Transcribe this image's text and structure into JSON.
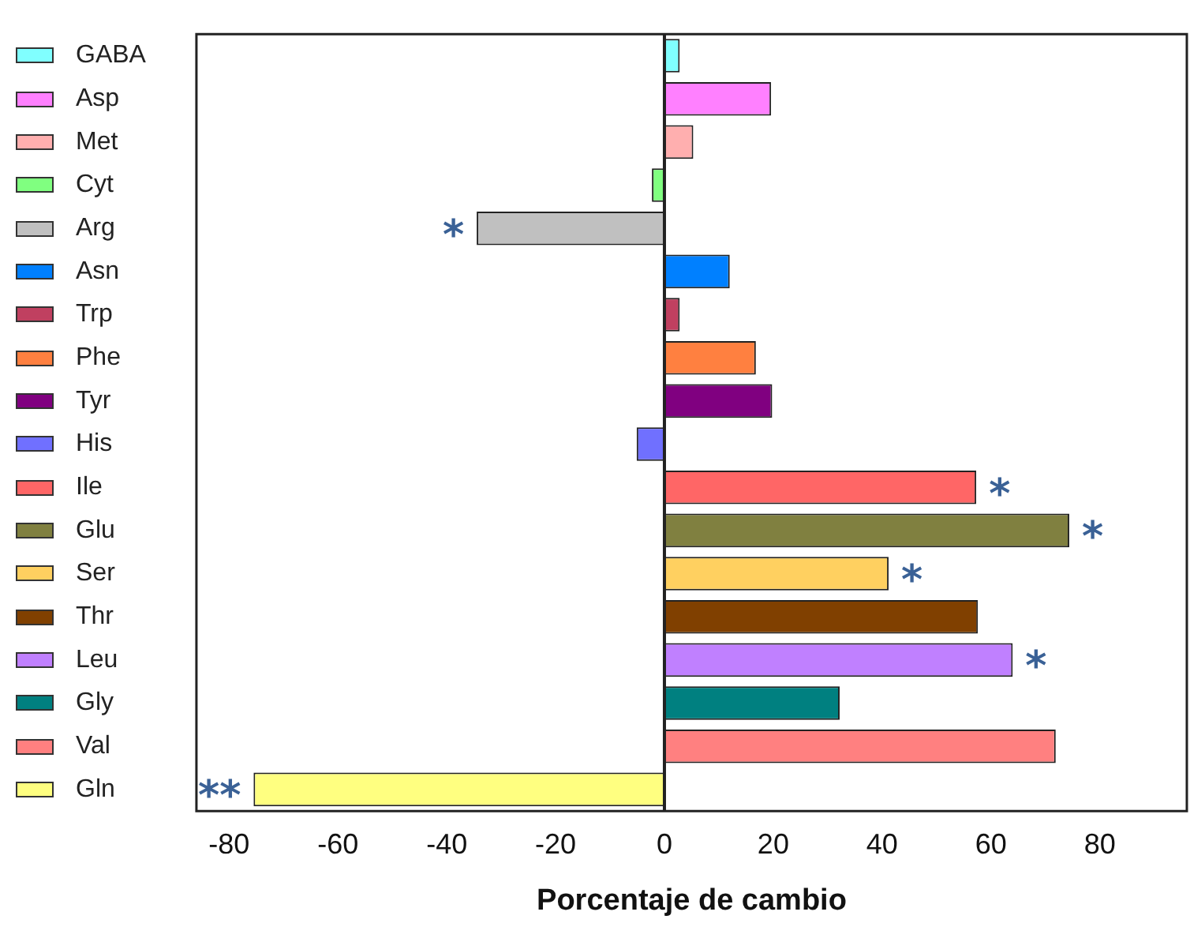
{
  "chart_data": {
    "type": "bar",
    "orientation": "horizontal",
    "xlabel": "Porcentaje de cambio",
    "categories": [
      "GABA",
      "Asp",
      "Met",
      "Cyt",
      "Arg",
      "Asn",
      "Trp",
      "Phe",
      "Tyr",
      "His",
      "Ile",
      "Glu",
      "Ser",
      "Thr",
      "Leu",
      "Gly",
      "Val",
      "Gln"
    ],
    "values": [
      2.8,
      19.6,
      5.3,
      -2.3,
      -34.5,
      12,
      2.8,
      16.8,
      19.8,
      -5.1,
      57.3,
      74.4,
      41.2,
      57.6,
      64,
      32.2,
      71.9,
      -75.5
    ],
    "colors": [
      "#80ffff",
      "#ff80ff",
      "#ffafaf",
      "#80ff80",
      "#c0c0c0",
      "#0080ff",
      "#c04060",
      "#ff8040",
      "#800080",
      "#7070ff",
      "#ff6666",
      "#808040",
      "#ffd060",
      "#804000",
      "#c080ff",
      "#008080",
      "#ff8080",
      "#ffff80"
    ],
    "xlim": [
      -86,
      96
    ],
    "xticks": [
      -80,
      -60,
      -40,
      -20,
      0,
      20,
      40,
      60,
      80
    ],
    "value_labels": [
      null,
      null,
      null,
      null,
      "*",
      null,
      null,
      null,
      null,
      null,
      "*",
      "*",
      "*",
      null,
      "*",
      null,
      null,
      "**"
    ]
  }
}
